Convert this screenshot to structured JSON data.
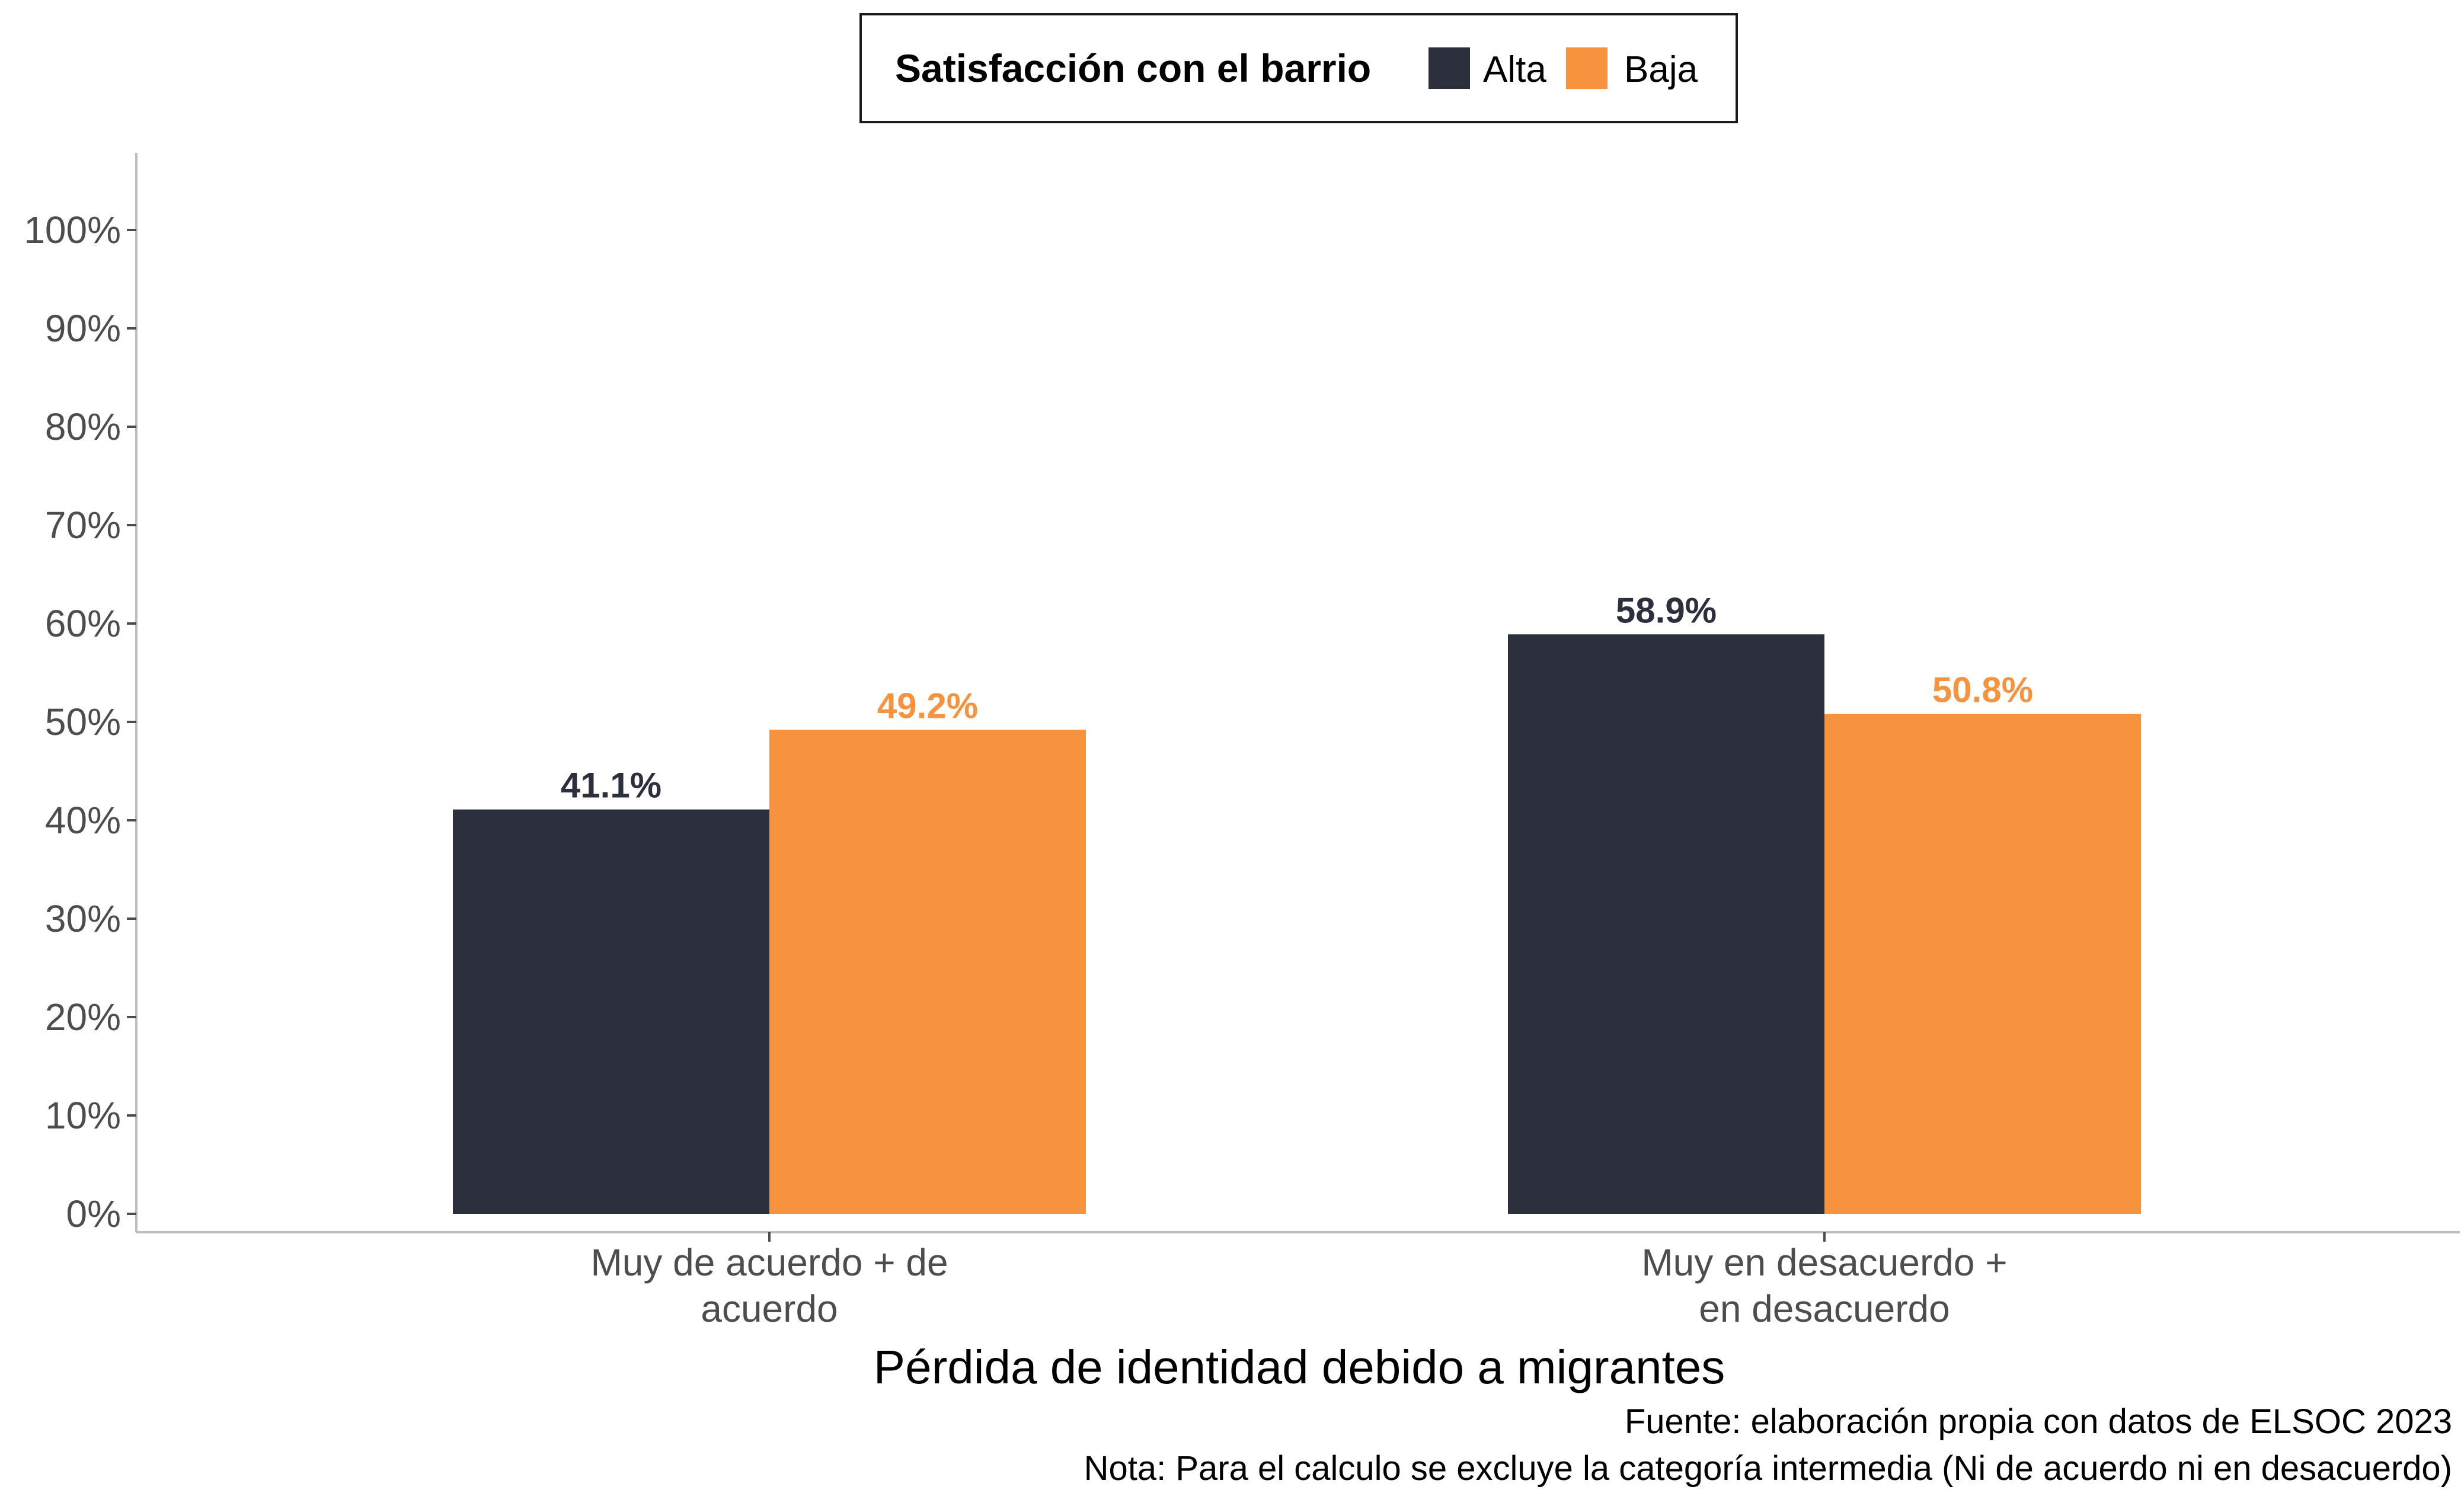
{
  "chart_data": {
    "type": "bar",
    "categories": [
      [
        "Muy de acuerdo + de",
        "acuerdo"
      ],
      [
        "Muy en desacuerdo +",
        "en desacuerdo"
      ]
    ],
    "series": [
      {
        "name": "Alta",
        "values": [
          41.1,
          58.9
        ],
        "labels": [
          "41.1%",
          "58.9%"
        ],
        "color": "#2c303c"
      },
      {
        "name": "Baja",
        "values": [
          49.2,
          50.8
        ],
        "labels": [
          "49.2%",
          "50.8%"
        ],
        "color": "#f7923e"
      }
    ],
    "xlabel": "Pérdida de identidad debido a migrantes",
    "ylabel": "",
    "ylim": [
      0,
      100
    ],
    "yticks": [
      {
        "value": 0,
        "label": "0%"
      },
      {
        "value": 10,
        "label": "10%"
      },
      {
        "value": 20,
        "label": "20%"
      },
      {
        "value": 30,
        "label": "30%"
      },
      {
        "value": 40,
        "label": "40%"
      },
      {
        "value": 50,
        "label": "50%"
      },
      {
        "value": 60,
        "label": "60%"
      },
      {
        "value": 70,
        "label": "70%"
      },
      {
        "value": 80,
        "label": "80%"
      },
      {
        "value": 90,
        "label": "90%"
      },
      {
        "value": 100,
        "label": "100%"
      }
    ],
    "legend": {
      "title": "Satisfacción con el barrio",
      "position": "top"
    },
    "grid": false,
    "captions": [
      "Fuente: elaboración propia con datos de ELSOC 2023",
      "Nota: Para el calculo se excluye la categoría intermedia (Ni de acuerdo ni en desacuerdo)"
    ]
  }
}
